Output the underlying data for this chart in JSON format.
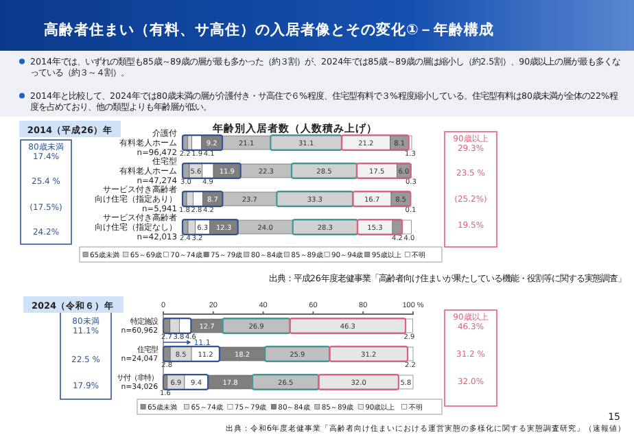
{
  "chart_data": [
    {
      "type": "bar",
      "orientation": "horizontal",
      "stacked": true,
      "title": "年齢別入居者数（人数積み上げ）",
      "categories": [
        "介護付有料老人ホーム\nn=96,472",
        "住宅型有料老人ホーム\nn=47,274",
        "サービス付き高齢者向け住宅（指定あり）\nn=5,941",
        "サービス付き高齢者向け住宅（指定なし）\nn=42,013"
      ],
      "series": [
        {
          "name": "65歳未満",
          "color": "#a6a6a6",
          "values": [
            2.2,
            3.0,
            1.8,
            2.4
          ],
          "value_labels": [
            "2.2",
            "3.0",
            "1.8",
            "2.4"
          ]
        },
        {
          "name": "65～69歳",
          "color": "#d9d9d9",
          "values": [
            1.9,
            5.6,
            2.8,
            3.2
          ],
          "value_labels": [
            "1.9",
            "5.6",
            "2.8",
            "3.2"
          ]
        },
        {
          "name": "70～74歳",
          "color": "#ffffff",
          "values": [
            4.1,
            4.9,
            4.2,
            6.3
          ],
          "value_labels": [
            "4.1",
            "4.9",
            "4.2",
            "6.3"
          ]
        },
        {
          "name": "75～79歳",
          "color": "#7f7f7f",
          "values": [
            9.2,
            11.9,
            8.7,
            12.3
          ],
          "value_labels": [
            "9.2",
            "11.9",
            "8.7",
            "12.3"
          ]
        },
        {
          "name": "80～84歳",
          "color": "#bfbfbf",
          "values": [
            21.1,
            22.3,
            23.7,
            24.0
          ],
          "value_labels": [
            "21.1",
            "22.3",
            "23.7",
            "24.0"
          ]
        },
        {
          "name": "85～89歳",
          "color": "#d0d0d0",
          "values": [
            31.1,
            28.5,
            33.3,
            28.3
          ],
          "value_labels": [
            "31.1",
            "28.5",
            "33.3",
            "28.3"
          ]
        },
        {
          "name": "90～94歳",
          "color": "#f2f2f2",
          "values": [
            21.2,
            17.5,
            16.7,
            15.3
          ],
          "value_labels": [
            "21.2",
            "17.5",
            "16.7",
            "15.3"
          ]
        },
        {
          "name": "95歳以上",
          "color": "#999999",
          "values": [
            8.1,
            6.0,
            8.5,
            4.2
          ],
          "value_labels": [
            "8.1",
            "6.0",
            "8.5",
            "4.2"
          ]
        },
        {
          "name": "不明",
          "color": "#ffffff",
          "values": [
            1.3,
            0.3,
            0.1,
            4.0
          ],
          "value_labels": [
            "1.3",
            "0.3",
            "0.1",
            "4.0"
          ]
        }
      ],
      "xlim": [
        0,
        100.2
      ],
      "legend": "bottom",
      "annotations": [
        "高齢者住まい（有料、サ高住）の入居者像とその変化①－年齢構成",
        "2014年では、いずれの類型も85歳～89歳の層が最も多かった（約３割）が、2024年では85歳～89歳の層は縮小し（約2.5割）、90歳以上の層が最も多くなっている（約３～４割）。",
        "2014年と比較して、2024年では80歳未満の層が介護付き・サ高住で６%程度、住宅型有料で３%程度縮小している。住宅型有料は80歳未満が全体の22%程度を占めており、他の類型よりも年齢層が低い。",
        "2014（平成26）年",
        "80歳未満\n17.4%",
        "25.4 %",
        "(17.5%)",
        "24.2%",
        "90歳以上\n29.3%",
        "23.5 %",
        "(25.2%)",
        "19.5%",
        "出典：平成26年度老健事業「高齢者向け住まいが果たしている機能・役割等に関する実態調査」",
        "15"
      ]
    },
    {
      "type": "bar",
      "orientation": "horizontal",
      "stacked": true,
      "categories": [
        "特定施設\nn=60,962",
        "住宅型\nn=24,047",
        "サ付（非特）\nn=34,026"
      ],
      "series": [
        {
          "name": "65歳未満",
          "color": "#8c8c8c",
          "values": [
            2.7,
            2.8,
            1.6
          ],
          "value_labels": [
            "2.7",
            "2.8",
            "1.6"
          ]
        },
        {
          "name": "65～74歳",
          "color": "#d9d9d9",
          "values": [
            3.8,
            8.5,
            6.9
          ],
          "value_labels": [
            "3.8",
            "8.5",
            "6.9"
          ]
        },
        {
          "name": "75～79歳",
          "color": "#ffffff",
          "values": [
            4.6,
            11.2,
            9.4
          ],
          "value_labels": [
            "4.6",
            "11.2",
            "9.4"
          ]
        },
        {
          "name": "80～84歳",
          "color": "#7f7f7f",
          "values": [
            12.7,
            18.2,
            17.8
          ],
          "value_labels": [
            "12.7",
            "18.2",
            "17.8"
          ]
        },
        {
          "name": "85～89歳",
          "color": "#bfbfbf",
          "values": [
            26.9,
            25.9,
            26.5
          ],
          "value_labels": [
            "26.9",
            "25.9",
            "26.5"
          ]
        },
        {
          "name": "90歳以上",
          "color": "#e7e6e6",
          "values": [
            46.3,
            31.2,
            32.0
          ],
          "value_labels": [
            "46.3",
            "31.2",
            "32.0"
          ]
        },
        {
          "name": "不明",
          "color": "#ffffff",
          "values": [
            2.9,
            2.2,
            5.8
          ],
          "value_labels": [
            "2.9",
            "2.2",
            "5.8"
          ]
        }
      ],
      "xlim": [
        0,
        100
      ],
      "xticks": [
        0,
        20,
        40,
        60,
        80,
        {
          "value": 100,
          "label": "100 %"
        }
      ],
      "legend": "bottom",
      "annotations": [
        "2024（令和６）年",
        "80未満\n11.1%",
        "22.5 %",
        "17.9%",
        "90歳以上\n46.3%",
        "31.2 %",
        "32.0%",
        "出典：令和6年度老健事業「高齢者向け住まいにおける運営実態の多様化に関する実態調査研究」（速報値）",
        {
          "text": "11.1",
          "x": 11.1,
          "y": "特定施設\nn=60,962"
        }
      ]
    }
  ]
}
